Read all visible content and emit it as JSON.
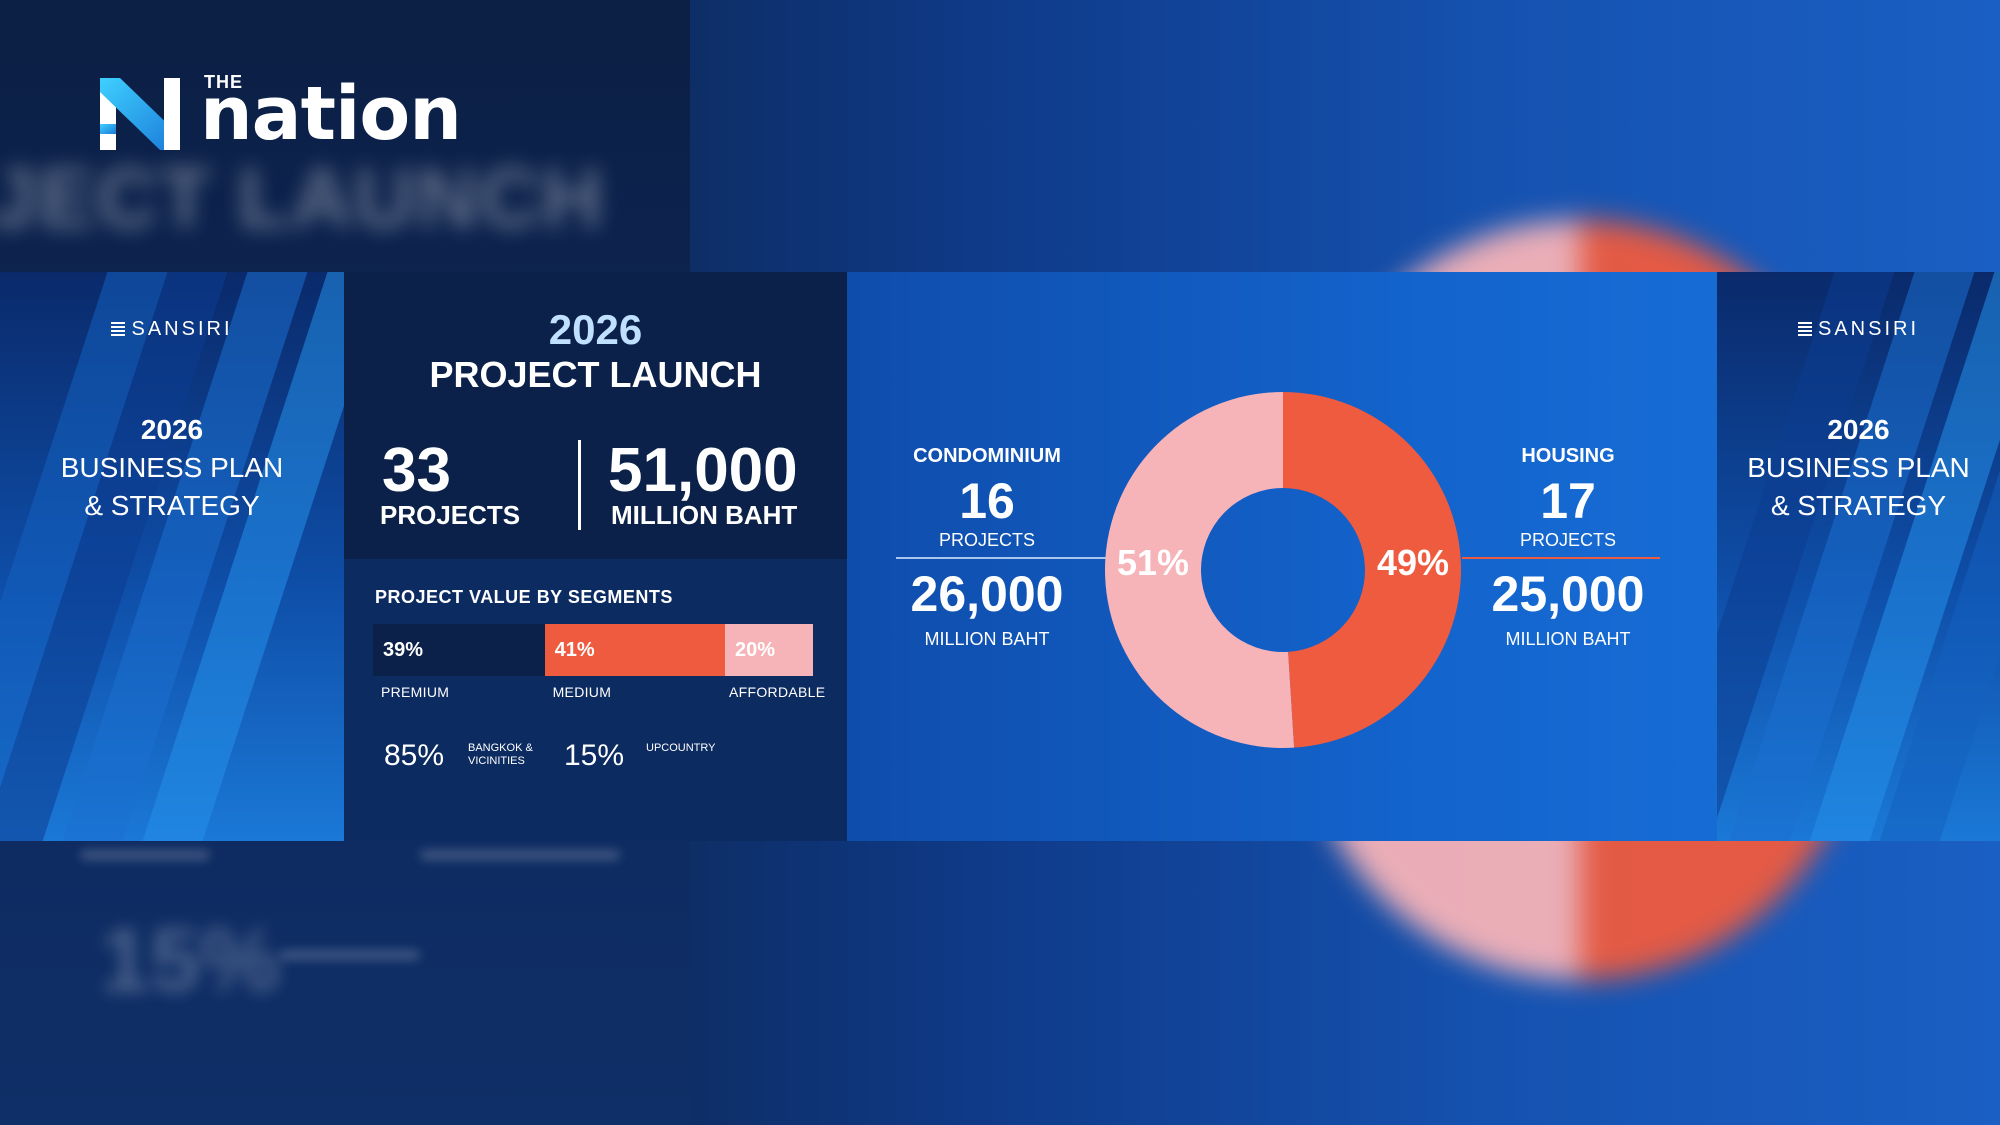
{
  "logo": {
    "the": "THE",
    "name": "nation"
  },
  "background": {
    "blurred_title": "JECT LAUNCH",
    "blurred_value": "15%"
  },
  "side_panels": {
    "brand": "SANSIRI",
    "year": "2026",
    "line1": "BUSINESS PLAN",
    "line2": "& STRATEGY"
  },
  "launch": {
    "year": "2026",
    "title": "PROJECT LAUNCH",
    "projects_value": "33",
    "projects_label": "PROJECTS",
    "baht_value": "51,000",
    "baht_label": "MILLION BAHT"
  },
  "chart_data": [
    {
      "type": "bar",
      "title": "PROJECT VALUE BY SEGMENTS",
      "orientation": "horizontal-stacked",
      "categories": [
        "PREMIUM",
        "MEDIUM",
        "AFFORDABLE"
      ],
      "values": [
        39,
        41,
        20
      ],
      "labels": [
        "39%",
        "41%",
        "20%"
      ],
      "colors": [
        "#0b2149",
        "#ef5b3f",
        "#f6b3b8"
      ]
    },
    {
      "type": "pie",
      "style": "donut",
      "categories": [
        "CONDOMINIUM",
        "HOUSING"
      ],
      "values": [
        51,
        49
      ],
      "labels": [
        "51%",
        "49%"
      ],
      "colors": [
        "#f6b3b8",
        "#ef5b3f"
      ],
      "annotations": {
        "condominium": {
          "title": "CONDOMINIUM",
          "projects": "16",
          "projects_label": "PROJECTS",
          "value": "26,000",
          "value_label": "MILLION BAHT"
        },
        "housing": {
          "title": "HOUSING",
          "projects": "17",
          "projects_label": "PROJECTS",
          "value": "25,000",
          "value_label": "MILLION BAHT"
        }
      }
    }
  ],
  "locations": [
    {
      "value": "85",
      "unit": "%",
      "label_line1": "BANGKOK &",
      "label_line2": "VICINITIES"
    },
    {
      "value": "15",
      "unit": "%",
      "label_line1": "UPCOUNTRY",
      "label_line2": ""
    }
  ]
}
